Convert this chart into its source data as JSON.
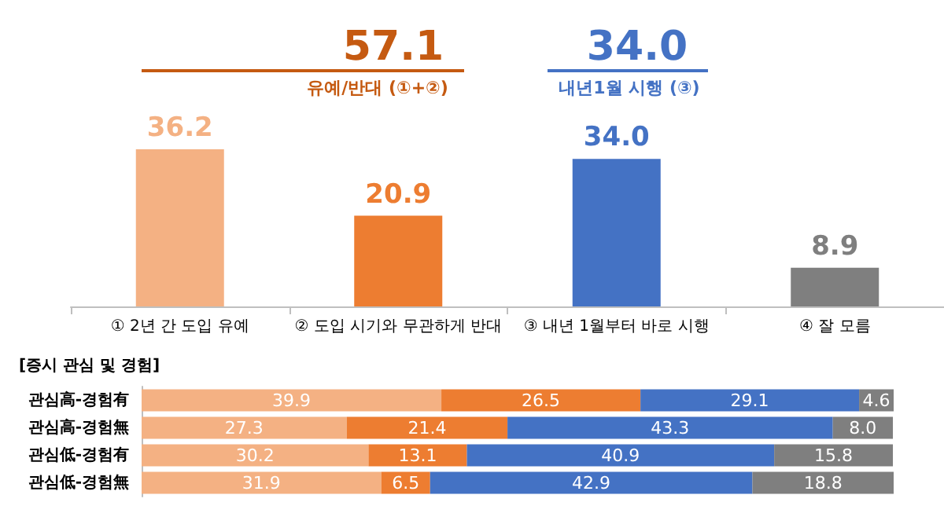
{
  "chart_data": [
    {
      "type": "bar",
      "categories": [
        "① 2년 간 도입 유예",
        "② 도입 시기와 무관하게 반대",
        "③ 내년 1월부터 바로 시행",
        "④ 잘 모름"
      ],
      "values": [
        36.2,
        20.9,
        34.0,
        8.9
      ],
      "value_labels": [
        "36.2",
        "20.9",
        "34.0",
        "8.9"
      ],
      "colors": [
        "#f4b183",
        "#ed7d31",
        "#4472c4",
        "#7f7f7f"
      ],
      "annotations": [
        "57.1",
        "유예/반대 (①+②)",
        "34.0",
        "내년1월 시행 (③)"
      ]
    },
    {
      "type": "bar",
      "title": "[증시 관심 및 경험]",
      "orientation": "horizontal",
      "stacked": true,
      "categories": [
        "관심高-경험有",
        "관심高-경험無",
        "관심低-경험有",
        "관심低-경험無"
      ],
      "series": [
        {
          "color": "#f4b183",
          "values": [
            39.9,
            27.3,
            30.2,
            31.9
          ],
          "value_labels": [
            "39.9",
            "27.3",
            "30.2",
            "31.9"
          ]
        },
        {
          "color": "#ed7d31",
          "values": [
            26.5,
            21.4,
            13.1,
            6.5
          ],
          "value_labels": [
            "26.5",
            "21.4",
            "13.1",
            "6.5"
          ]
        },
        {
          "color": "#4472c4",
          "values": [
            29.1,
            43.3,
            40.9,
            42.9
          ],
          "value_labels": [
            "29.1",
            "43.3",
            "40.9",
            "42.9"
          ]
        },
        {
          "color": "#7f7f7f",
          "values": [
            4.6,
            8.0,
            15.8,
            18.8
          ],
          "value_labels": [
            "4.6",
            "8.0",
            "15.8",
            "18.8"
          ]
        }
      ]
    }
  ]
}
